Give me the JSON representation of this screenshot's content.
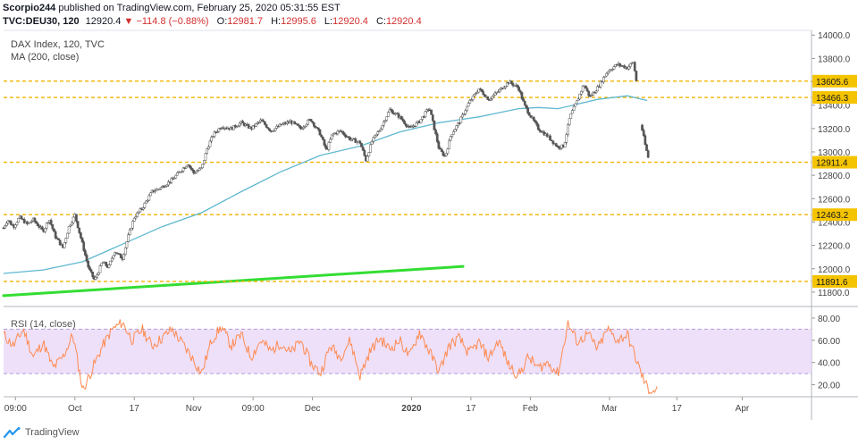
{
  "header": {
    "publisher": "Scorpio244",
    "published_text": "published on TradingView.com, February 25, 2020 05:31:55 EST",
    "symbol": "TVC:DEU30, 120",
    "last": "12920.4",
    "arrow": "▼",
    "change": "−114.8 (−0.88%)",
    "o_label": "O:",
    "o_value": "12981.7",
    "h_label": "H:",
    "h_value": "12995.6",
    "l_label": "L:",
    "l_value": "12920.4",
    "c_label": "C:",
    "c_value": "12920.4"
  },
  "legend": {
    "main": "DAX Index, 120, TVC",
    "ma": "MA (200, close)",
    "rsi": "RSI (14, close)"
  },
  "footer": {
    "brand": "TradingView"
  },
  "colors": {
    "up": "#26a69a",
    "down": "#ef5350",
    "candle_body": "#9e9e9e",
    "candle_wick": "#555555",
    "ma": "#5fb8d0",
    "trend": "#33dd33",
    "level": "#f0b400",
    "level_label_bg": "#f5c400",
    "rsi": "#ff8a50",
    "rsi_band": "#e8d6f7"
  },
  "chart_data": [
    {
      "type": "candlestick",
      "title": "DAX Index, 120, TVC",
      "x_ticks": [
        "09:00",
        "Oct",
        "17",
        "Nov",
        "09:00",
        "Dec",
        "2020",
        "17",
        "Feb",
        "Mar",
        "17",
        "Apr"
      ],
      "x_ticks_bold": [
        "2020"
      ],
      "y_ticks": [
        11800,
        12000,
        12200,
        12400,
        12600,
        12800,
        13000,
        13200,
        13400,
        13600,
        13800,
        14000
      ],
      "y_tick_labels": [
        "11800.0",
        "12000.0",
        "12200.0",
        "12400.0",
        "12600.0",
        "12800.0",
        "13000.0",
        "13200.0",
        "13400.0",
        "13600.0",
        "13800.0",
        "14000.0"
      ],
      "ylim": [
        11700,
        14040
      ],
      "horizontal_levels": [
        {
          "value": 13605.6,
          "label": "13605.6"
        },
        {
          "value": 13466.3,
          "label": "13466.3"
        },
        {
          "value": 12911.4,
          "label": "12911.4"
        },
        {
          "value": 12463.2,
          "label": "12463.2"
        },
        {
          "value": 11891.6,
          "label": "11891.6"
        }
      ],
      "price_path": [
        [
          0,
          12350
        ],
        [
          0.2,
          12420
        ],
        [
          0.5,
          12360
        ],
        [
          0.8,
          12440
        ],
        [
          1.2,
          12380
        ],
        [
          1.5,
          12420
        ],
        [
          2,
          12320
        ],
        [
          2.3,
          12430
        ],
        [
          2.6,
          12280
        ],
        [
          3,
          12180
        ],
        [
          3.3,
          12360
        ],
        [
          3.6,
          12460
        ],
        [
          4,
          12200
        ],
        [
          4.3,
          12000
        ],
        [
          4.6,
          11900
        ],
        [
          5,
          12060
        ],
        [
          5.3,
          12010
        ],
        [
          5.6,
          12150
        ],
        [
          6,
          12090
        ],
        [
          6.3,
          12280
        ],
        [
          6.6,
          12440
        ],
        [
          7,
          12520
        ],
        [
          7.5,
          12660
        ],
        [
          8,
          12700
        ],
        [
          8.5,
          12760
        ],
        [
          9,
          12850
        ],
        [
          9.3,
          12900
        ],
        [
          9.6,
          12820
        ],
        [
          10,
          12860
        ],
        [
          10.3,
          13040
        ],
        [
          10.6,
          13150
        ],
        [
          11,
          13220
        ],
        [
          11.5,
          13200
        ],
        [
          12,
          13250
        ],
        [
          12.5,
          13200
        ],
        [
          13,
          13270
        ],
        [
          13.5,
          13180
        ],
        [
          14,
          13230
        ],
        [
          14.5,
          13260
        ],
        [
          15,
          13200
        ],
        [
          15.5,
          13280
        ],
        [
          16,
          13150
        ],
        [
          16.3,
          13010
        ],
        [
          16.6,
          13150
        ],
        [
          17,
          13180
        ],
        [
          17.5,
          13110
        ],
        [
          18,
          13080
        ],
        [
          18.3,
          12930
        ],
        [
          18.6,
          13090
        ],
        [
          19,
          13190
        ],
        [
          19.5,
          13360
        ],
        [
          20,
          13300
        ],
        [
          20.5,
          13200
        ],
        [
          21,
          13260
        ],
        [
          21.5,
          13380
        ],
        [
          22,
          13020
        ],
        [
          22.3,
          12960
        ],
        [
          22.6,
          13150
        ],
        [
          23,
          13250
        ],
        [
          23.5,
          13420
        ],
        [
          24,
          13540
        ],
        [
          24.5,
          13450
        ],
        [
          25,
          13520
        ],
        [
          25.5,
          13600
        ],
        [
          26,
          13550
        ],
        [
          26.3,
          13400
        ],
        [
          26.6,
          13310
        ],
        [
          27,
          13200
        ],
        [
          27.5,
          13130
        ],
        [
          28,
          13040
        ],
        [
          28.3,
          13050
        ],
        [
          28.6,
          13300
        ],
        [
          29,
          13450
        ],
        [
          29.3,
          13580
        ],
        [
          29.6,
          13470
        ],
        [
          30,
          13550
        ],
        [
          30.5,
          13690
        ],
        [
          31,
          13750
        ],
        [
          31.5,
          13720
        ],
        [
          31.8,
          13770
        ],
        [
          32,
          13560
        ],
        [
          32.2,
          13230
        ],
        [
          32.4,
          13060
        ],
        [
          32.6,
          12920
        ]
      ],
      "ma_path": [
        [
          0,
          11960
        ],
        [
          2,
          11990
        ],
        [
          4,
          12060
        ],
        [
          6,
          12210
        ],
        [
          8,
          12360
        ],
        [
          10,
          12480
        ],
        [
          12,
          12660
        ],
        [
          14,
          12830
        ],
        [
          16,
          12970
        ],
        [
          18,
          13050
        ],
        [
          20,
          13170
        ],
        [
          22,
          13250
        ],
        [
          24,
          13300
        ],
        [
          26,
          13370
        ],
        [
          27,
          13380
        ],
        [
          28,
          13370
        ],
        [
          30,
          13450
        ],
        [
          31.5,
          13480
        ],
        [
          32.5,
          13440
        ]
      ],
      "trend_line": [
        [
          0,
          11770
        ],
        [
          23.2,
          12020
        ]
      ],
      "x_tick_positions": [
        0.6,
        3.6,
        6.6,
        9.6,
        12.6,
        15.6,
        20.6,
        23.6,
        26.6,
        30.6,
        34.0,
        37.3
      ],
      "x_range": [
        0,
        40.8
      ]
    },
    {
      "type": "line",
      "title": "RSI (14, close)",
      "y_ticks": [
        20,
        40,
        60,
        80
      ],
      "y_tick_labels": [
        "20.00",
        "40.00",
        "60.00",
        "80.00"
      ],
      "ylim": [
        10,
        88
      ],
      "band": [
        30,
        70
      ],
      "values": [
        [
          0,
          65
        ],
        [
          0.5,
          55
        ],
        [
          1,
          70
        ],
        [
          1.5,
          45
        ],
        [
          2,
          58
        ],
        [
          2.5,
          35
        ],
        [
          3,
          45
        ],
        [
          3.5,
          65
        ],
        [
          4,
          15
        ],
        [
          4.5,
          35
        ],
        [
          5,
          55
        ],
        [
          5.5,
          70
        ],
        [
          6,
          76
        ],
        [
          6.5,
          60
        ],
        [
          7,
          70
        ],
        [
          7.5,
          55
        ],
        [
          8,
          62
        ],
        [
          8.5,
          70
        ],
        [
          9,
          58
        ],
        [
          9.5,
          45
        ],
        [
          10,
          30
        ],
        [
          10.5,
          60
        ],
        [
          11,
          72
        ],
        [
          11.5,
          55
        ],
        [
          12,
          65
        ],
        [
          12.5,
          45
        ],
        [
          13,
          60
        ],
        [
          13.5,
          50
        ],
        [
          14,
          58
        ],
        [
          14.5,
          48
        ],
        [
          15,
          60
        ],
        [
          15.5,
          40
        ],
        [
          16,
          30
        ],
        [
          16.5,
          55
        ],
        [
          17,
          45
        ],
        [
          17.5,
          60
        ],
        [
          18,
          28
        ],
        [
          18.5,
          50
        ],
        [
          19,
          62
        ],
        [
          19.5,
          52
        ],
        [
          20,
          60
        ],
        [
          20.5,
          45
        ],
        [
          21,
          68
        ],
        [
          21.5,
          50
        ],
        [
          22,
          32
        ],
        [
          22.5,
          55
        ],
        [
          23,
          62
        ],
        [
          23.5,
          48
        ],
        [
          24,
          58
        ],
        [
          24.5,
          44
        ],
        [
          25,
          60
        ],
        [
          25.5,
          38
        ],
        [
          26,
          28
        ],
        [
          26.5,
          45
        ],
        [
          27,
          35
        ],
        [
          27.5,
          40
        ],
        [
          28,
          30
        ],
        [
          28.5,
          75
        ],
        [
          29,
          58
        ],
        [
          29.5,
          66
        ],
        [
          30,
          52
        ],
        [
          30.5,
          70
        ],
        [
          31,
          60
        ],
        [
          31.5,
          65
        ],
        [
          32,
          40
        ],
        [
          32.3,
          25
        ],
        [
          32.6,
          15
        ],
        [
          33,
          15
        ]
      ]
    }
  ]
}
